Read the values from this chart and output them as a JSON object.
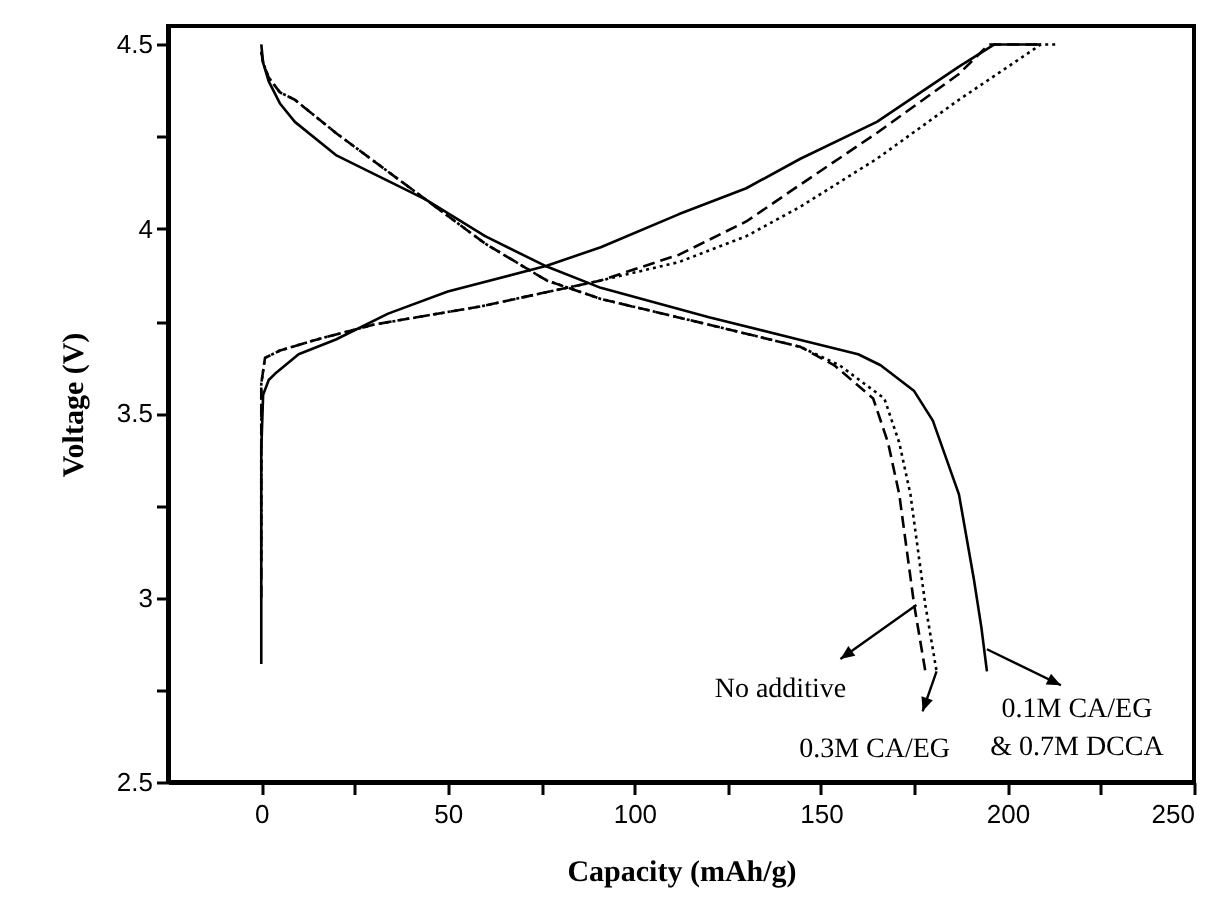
{
  "chart_data": {
    "type": "line",
    "xlabel": "Capacity (mAh/g)",
    "ylabel": "Voltage (V)",
    "xlim": [
      -25,
      250
    ],
    "ylim": [
      2.5,
      4.55
    ],
    "xticks": [
      0,
      {
        "value": 25,
        "label": null
      },
      50,
      {
        "value": 75,
        "label": null
      },
      100,
      {
        "value": 125,
        "label": null
      },
      150,
      {
        "value": 175,
        "label": null
      },
      200,
      {
        "value": 225,
        "label": null
      },
      250
    ],
    "yticks": [
      2.5,
      {
        "value": 2.75,
        "label": null
      },
      3.0,
      {
        "value": 3.25,
        "label": null
      },
      3.5,
      {
        "value": 3.75,
        "label": null
      },
      4.0,
      {
        "value": 4.25,
        "label": null
      },
      4.5
    ],
    "grid": false,
    "marker": "none",
    "series": [
      {
        "color": "#000000",
        "line_style": "solid",
        "x": [
          0,
          0,
          0.5,
          2,
          4,
          10,
          20,
          34,
          50,
          76.5,
          91,
          112,
          130,
          144.5,
          165,
          187,
          196.5,
          209
        ],
        "values": [
          2.82,
          3.4,
          3.55,
          3.59,
          3.61,
          3.66,
          3.7,
          3.77,
          3.83,
          3.9,
          3.95,
          4.04,
          4.11,
          4.19,
          4.29,
          4.44,
          4.5,
          4.5
        ]
      },
      {
        "color": "#000000",
        "line_style": "dashed",
        "x": [
          0,
          0,
          1,
          5,
          15,
          30,
          59,
          91,
          112,
          130,
          144.5,
          165,
          187,
          195,
          209
        ],
        "values": [
          3.0,
          3.58,
          3.65,
          3.67,
          3.7,
          3.74,
          3.79,
          3.86,
          3.93,
          4.02,
          4.12,
          4.26,
          4.42,
          4.5,
          4.5
        ]
      },
      {
        "color": "#000000",
        "line_style": "dotted",
        "x": [
          0,
          0,
          1,
          5,
          15,
          30,
          59,
          91,
          112,
          130,
          144.5,
          165,
          187,
          209,
          213
        ],
        "values": [
          3.1,
          3.58,
          3.65,
          3.67,
          3.7,
          3.74,
          3.79,
          3.86,
          3.91,
          3.98,
          4.06,
          4.19,
          4.35,
          4.5,
          4.5
        ]
      },
      {
        "color": "#000000",
        "line_style": "solid",
        "x": [
          0,
          0.5,
          2,
          5,
          9,
          20,
          44,
          60,
          76,
          91,
          120,
          144,
          160,
          166,
          175,
          180,
          187,
          191,
          193,
          194.5
        ],
        "values": [
          4.5,
          4.45,
          4.4,
          4.34,
          4.29,
          4.2,
          4.08,
          3.98,
          3.9,
          3.84,
          3.76,
          3.7,
          3.66,
          3.63,
          3.56,
          3.48,
          3.28,
          3.05,
          2.92,
          2.8
        ]
      },
      {
        "color": "#000000",
        "line_style": "dashed",
        "x": [
          0,
          0.5,
          2,
          5,
          9,
          20,
          44,
          60,
          76.5,
          91,
          120,
          144.5,
          153.6,
          164,
          168,
          171,
          175,
          178
        ],
        "values": [
          4.48,
          4.45,
          4.41,
          4.37,
          4.35,
          4.26,
          4.08,
          3.96,
          3.86,
          3.81,
          3.74,
          3.68,
          3.63,
          3.54,
          3.42,
          3.28,
          2.98,
          2.8
        ]
      },
      {
        "color": "#000000",
        "line_style": "dotted",
        "x": [
          0,
          0.5,
          2,
          5,
          9,
          20,
          44,
          60,
          76.5,
          91,
          120,
          144.5,
          155,
          167,
          171,
          174,
          178,
          181
        ],
        "values": [
          4.48,
          4.45,
          4.41,
          4.37,
          4.35,
          4.26,
          4.08,
          3.96,
          3.86,
          3.81,
          3.74,
          3.68,
          3.63,
          3.54,
          3.42,
          3.28,
          2.98,
          2.8
        ]
      }
    ],
    "annotations": [
      {
        "text": "No additive",
        "x": 175.6,
        "y": 2.98
      },
      {
        "text": "0.3M CA/EG",
        "x": 181,
        "y": 2.8
      },
      {
        "text": "0.1M CA/EG & 0.7M DCCA",
        "x": 194.5,
        "y": 2.86
      }
    ]
  }
}
